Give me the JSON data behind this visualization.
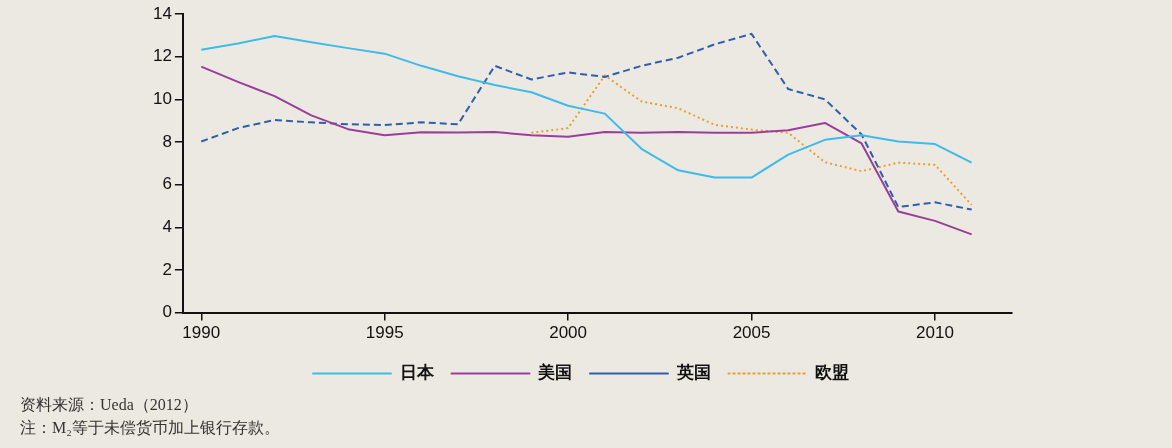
{
  "chart_data": {
    "type": "line",
    "x": [
      1990,
      1991,
      1992,
      1993,
      1994,
      1995,
      1996,
      1997,
      1998,
      1999,
      2000,
      2001,
      2002,
      2003,
      2004,
      2005,
      2006,
      2007,
      2008,
      2009,
      2010,
      2011
    ],
    "xlim": [
      1989.5,
      2012.1
    ],
    "xticks": [
      1990,
      1995,
      2000,
      2005,
      2010
    ],
    "ylim": [
      0,
      14
    ],
    "yticks": [
      0,
      2,
      4,
      6,
      8,
      10,
      12,
      14
    ],
    "grid": false,
    "legend": "bottom",
    "marker": "none",
    "series": [
      {
        "name": "日本",
        "color": "#3dbbea",
        "line_style": "solid",
        "values": [
          12.32,
          12.62,
          12.97,
          12.68,
          12.4,
          12.14,
          11.57,
          11.08,
          10.67,
          10.33,
          9.7,
          9.33,
          7.68,
          6.67,
          6.33,
          6.33,
          7.41,
          8.1,
          8.31,
          8.02,
          7.9,
          7.03
        ]
      },
      {
        "name": "美国",
        "color": "#9b3e9b",
        "line_style": "solid",
        "values": [
          11.53,
          10.82,
          10.15,
          9.25,
          8.6,
          8.31,
          8.46,
          8.44,
          8.47,
          8.31,
          8.25,
          8.47,
          8.43,
          8.47,
          8.43,
          8.43,
          8.55,
          8.89,
          7.93,
          4.74,
          4.3,
          3.67
        ]
      },
      {
        "name": "英国",
        "color": "#2e5fae",
        "line_style": "dashed",
        "values": [
          8.02,
          8.65,
          9.03,
          8.92,
          8.83,
          8.79,
          8.92,
          8.83,
          11.57,
          10.93,
          11.26,
          11.05,
          11.57,
          11.95,
          12.58,
          13.07,
          10.48,
          10.0,
          8.35,
          4.95,
          5.17,
          4.83
        ]
      },
      {
        "name": "欧盟",
        "color": "#e8a02a",
        "line_style": "dotted",
        "values": [
          null,
          null,
          null,
          null,
          null,
          null,
          null,
          null,
          null,
          8.43,
          8.65,
          11.12,
          9.9,
          9.58,
          8.8,
          8.58,
          8.43,
          7.05,
          6.63,
          7.03,
          6.93,
          5.05
        ]
      }
    ],
    "annotations": [
      "资料来源：Ueda（2012）",
      "注：M₂等于未偿货币加上银行存款。"
    ]
  }
}
